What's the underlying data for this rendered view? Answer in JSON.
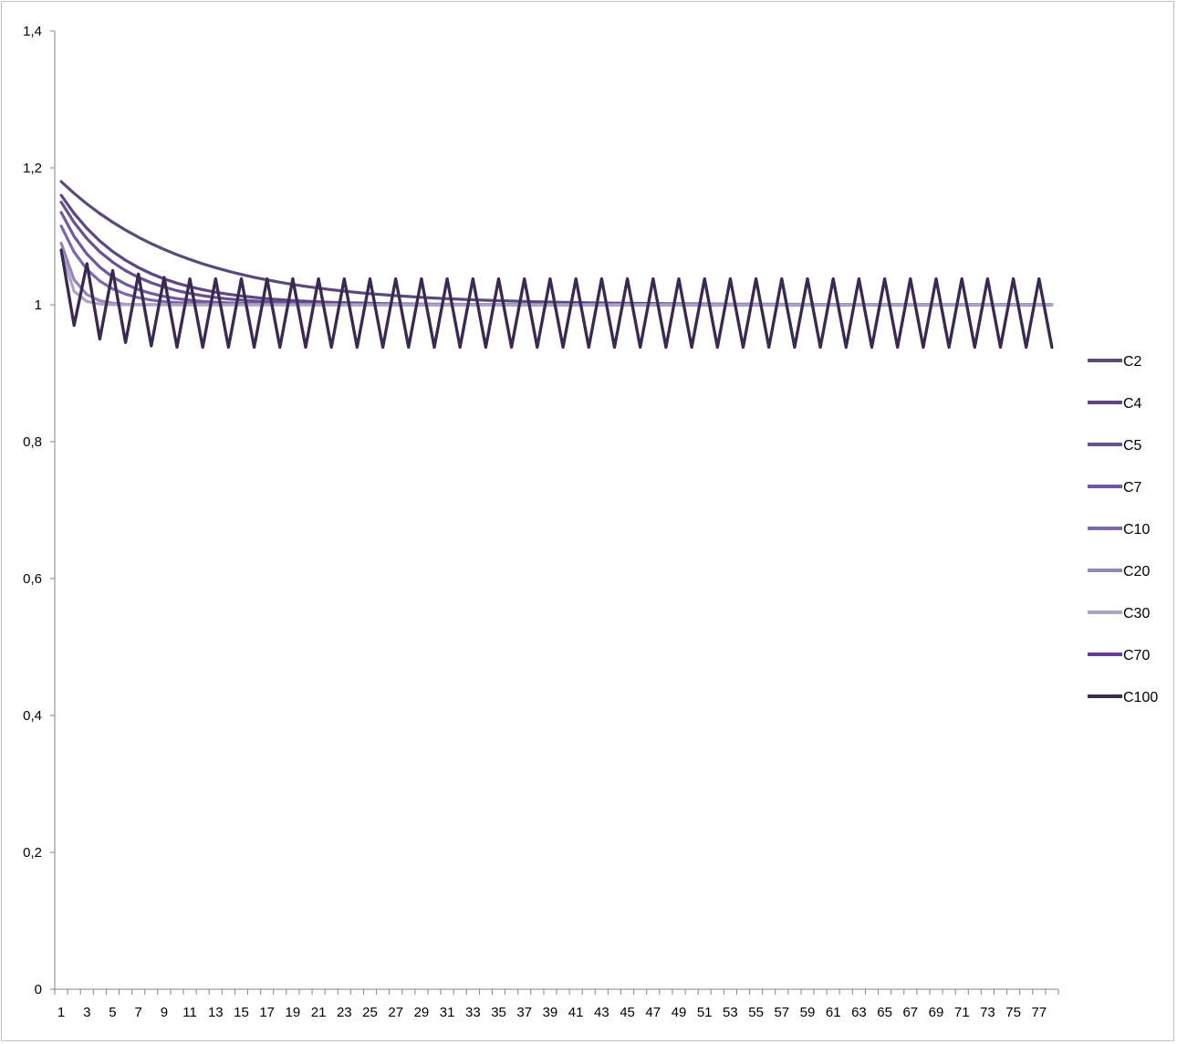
{
  "chart_data": {
    "type": "line",
    "title": "",
    "xlabel": "",
    "ylabel": "",
    "ylim": [
      0,
      1.4
    ],
    "y_ticks": [
      "0",
      "0,2",
      "0,4",
      "0,6",
      "0,8",
      "1",
      "1,2",
      "1,4"
    ],
    "y_tick_values": [
      0,
      0.2,
      0.4,
      0.6,
      0.8,
      1.0,
      1.2,
      1.4
    ],
    "x_range": [
      1,
      78
    ],
    "x_tick_labels_every": 2,
    "legend_position": "right",
    "grid": false,
    "series": [
      {
        "name": "C2",
        "color": "#5a4a7a",
        "start": 1.18,
        "decay_rate": 0.1,
        "oscillating": false
      },
      {
        "name": "C4",
        "color": "#5e4585",
        "start": 1.16,
        "decay_rate": 0.18,
        "oscillating": false
      },
      {
        "name": "C5",
        "color": "#67528f",
        "start": 1.15,
        "decay_rate": 0.22,
        "oscillating": false
      },
      {
        "name": "C7",
        "color": "#7059a0",
        "start": 1.135,
        "decay_rate": 0.3,
        "oscillating": false
      },
      {
        "name": "C10",
        "color": "#7f67ae",
        "start": 1.115,
        "decay_rate": 0.4,
        "oscillating": false
      },
      {
        "name": "C20",
        "color": "#9585b8",
        "start": 1.09,
        "decay_rate": 0.9,
        "oscillating": false
      },
      {
        "name": "C30",
        "color": "#ada3c8",
        "start": 1.08,
        "decay_rate": 1.4,
        "oscillating": false
      },
      {
        "name": "C70",
        "color": "#6a3a97",
        "start": 1.08,
        "oscillating": true,
        "peaks": [
          1.08,
          1.06,
          1.05,
          1.045,
          1.04
        ],
        "troughs": [
          0.97,
          0.95,
          0.945,
          0.94
        ],
        "steady_high": 1.038,
        "steady_low": 0.938
      },
      {
        "name": "C100",
        "color": "#3a2a50",
        "start": 1.08,
        "oscillating": true,
        "peaks": [
          1.08,
          1.06,
          1.05,
          1.045,
          1.04
        ],
        "troughs": [
          0.97,
          0.95,
          0.945,
          0.94
        ],
        "steady_high": 1.038,
        "steady_low": 0.938
      }
    ]
  }
}
